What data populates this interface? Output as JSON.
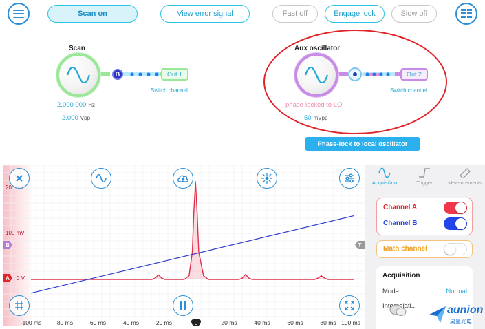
{
  "toolbar": {
    "scan_on": "Scan on",
    "view_error_signal": "View error signal",
    "fast_off": "Fast off",
    "engage_lock": "Engage lock",
    "slow_off": "Slow off"
  },
  "scan_block": {
    "title": "Scan",
    "frequency": "2.000 000",
    "frequency_unit": "Hz",
    "amplitude": "2.000",
    "amplitude_unit": "Vpp",
    "output_label": "Out 1",
    "switch_channel": "Switch channel",
    "node_label": "B"
  },
  "aux_block": {
    "title": "Aux oscillator",
    "status": "phase-locked to LO",
    "amplitude": "50",
    "amplitude_unit": "mVpp",
    "output_label": "Out 2",
    "switch_channel": "Switch channel",
    "phase_lock_button": "Phase-lock to local oscillator"
  },
  "scope": {
    "y_labels": [
      "200 mV",
      "100 mV",
      "0 V"
    ],
    "x_labels": [
      "-100 ms",
      "-80 ms",
      "-60 ms",
      "-40 ms",
      "-20 ms",
      "0",
      "20 ms",
      "40 ms",
      "60 ms",
      "80 ms",
      "100 ms"
    ],
    "marker_b": "B",
    "marker_a": "A",
    "marker_t": "T"
  },
  "chart_data": {
    "type": "line",
    "xlabel": "",
    "ylabel": "",
    "xlim": [
      -100,
      100
    ],
    "ylim": [
      -30,
      230
    ],
    "series": [
      {
        "color": "#e0304a",
        "points": [
          [
            -100,
            0
          ],
          [
            -25,
            0
          ],
          [
            -23,
            3
          ],
          [
            -21,
            10
          ],
          [
            -19,
            3
          ],
          [
            -17,
            0
          ],
          [
            -5,
            0
          ],
          [
            -2,
            8
          ],
          [
            0,
            60
          ],
          [
            1,
            150
          ],
          [
            2,
            215
          ],
          [
            3,
            150
          ],
          [
            4,
            60
          ],
          [
            7,
            8
          ],
          [
            10,
            0
          ],
          [
            29,
            0
          ],
          [
            31,
            3
          ],
          [
            33,
            11
          ],
          [
            35,
            3
          ],
          [
            37,
            0
          ],
          [
            76,
            0
          ],
          [
            78,
            3
          ],
          [
            80,
            8
          ],
          [
            82,
            3
          ],
          [
            84,
            0
          ],
          [
            100,
            0
          ]
        ]
      },
      {
        "color": "#2e3bd0",
        "points": [
          [
            -100,
            -30
          ],
          [
            100,
            140
          ]
        ]
      }
    ]
  },
  "panel": {
    "tabs": [
      "Acquisition",
      "Trigger",
      "Measurements"
    ],
    "channel_a": "Channel A",
    "channel_b": "Channel B",
    "math_channel": "Math channel",
    "acquisition_title": "Acquisition",
    "mode_label": "Mode",
    "mode_value": "Normal",
    "interpolation_label": "Interpolati...",
    "toggle_a_color": "#f0364a",
    "toggle_b_color": "#2344e8"
  },
  "watermark": {
    "brand": "aunion",
    "subtitle": "昊量光电"
  }
}
